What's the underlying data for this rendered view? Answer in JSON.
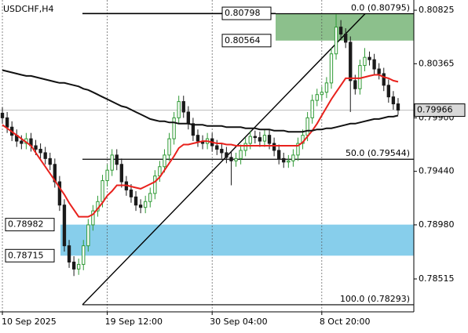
{
  "chart_data": {
    "type": "candlestick",
    "title": "USDCHF,H4",
    "up_color": "#2f9a35",
    "down_color": "#1a1a1a",
    "open": [
      0.7994,
      0.799,
      0.7982,
      0.7975,
      0.797,
      0.7968,
      0.7972,
      0.7966,
      0.7963,
      0.796,
      0.7955,
      0.795,
      0.7935,
      0.7915,
      0.788,
      0.7866,
      0.786,
      0.7864,
      0.788,
      0.7898,
      0.791,
      0.7918,
      0.7936,
      0.7945,
      0.7958,
      0.795,
      0.7935,
      0.7928,
      0.7922,
      0.7915,
      0.7913,
      0.7918,
      0.7925,
      0.794,
      0.7948,
      0.7958,
      0.7972,
      0.799,
      0.8004,
      0.7995,
      0.7985,
      0.7975,
      0.797,
      0.7968,
      0.7972,
      0.7966,
      0.7963,
      0.796,
      0.7956,
      0.7953,
      0.7955,
      0.7962,
      0.7968,
      0.7974,
      0.7973,
      0.797,
      0.7975,
      0.7968,
      0.7962,
      0.7955,
      0.7952,
      0.7953,
      0.7958,
      0.7968,
      0.7975,
      0.799,
      0.8005,
      0.801,
      0.8012,
      0.802,
      0.8045,
      0.8068,
      0.8062,
      0.8055,
      0.8022,
      0.8015,
      0.8035,
      0.8042,
      0.804,
      0.8032,
      0.8028,
      0.8018,
      0.8008,
      0.8002
    ],
    "high": [
      0.7999,
      0.7995,
      0.7987,
      0.798,
      0.7975,
      0.7977,
      0.7977,
      0.7971,
      0.7968,
      0.7965,
      0.796,
      0.7955,
      0.794,
      0.792,
      0.7885,
      0.7871,
      0.7869,
      0.7885,
      0.7903,
      0.7915,
      0.7923,
      0.7941,
      0.795,
      0.7963,
      0.7963,
      0.7955,
      0.794,
      0.7933,
      0.7927,
      0.792,
      0.7923,
      0.793,
      0.7945,
      0.7953,
      0.7963,
      0.7977,
      0.7995,
      0.8009,
      0.8009,
      0.8,
      0.799,
      0.798,
      0.7975,
      0.7977,
      0.7977,
      0.7971,
      0.7968,
      0.7965,
      0.7961,
      0.796,
      0.7967,
      0.7973,
      0.7979,
      0.7979,
      0.7978,
      0.798,
      0.798,
      0.7973,
      0.7967,
      0.796,
      0.7958,
      0.7963,
      0.7973,
      0.798,
      0.7995,
      0.801,
      0.8015,
      0.8017,
      0.8025,
      0.805,
      0.8079,
      0.8074,
      0.8067,
      0.806,
      0.8027,
      0.804,
      0.805,
      0.8047,
      0.8045,
      0.8037,
      0.8033,
      0.8023,
      0.8013,
      0.8007
    ],
    "low": [
      0.7985,
      0.7977,
      0.797,
      0.7965,
      0.7963,
      0.7963,
      0.7961,
      0.7958,
      0.7955,
      0.795,
      0.7945,
      0.793,
      0.791,
      0.7875,
      0.7861,
      0.7854,
      0.7855,
      0.7859,
      0.7875,
      0.7893,
      0.7905,
      0.7913,
      0.7931,
      0.794,
      0.7945,
      0.793,
      0.7923,
      0.7917,
      0.791,
      0.7908,
      0.7908,
      0.7913,
      0.792,
      0.7935,
      0.7943,
      0.7953,
      0.7967,
      0.7985,
      0.799,
      0.798,
      0.797,
      0.7965,
      0.7963,
      0.7963,
      0.7961,
      0.7958,
      0.7955,
      0.7951,
      0.7932,
      0.7948,
      0.795,
      0.7957,
      0.7963,
      0.7968,
      0.7965,
      0.7965,
      0.7963,
      0.7957,
      0.795,
      0.7947,
      0.7947,
      0.7948,
      0.7953,
      0.7963,
      0.797,
      0.7985,
      0.8,
      0.8005,
      0.8007,
      0.8015,
      0.804,
      0.8057,
      0.805,
      0.7995,
      0.801,
      0.801,
      0.803,
      0.8035,
      0.8027,
      0.8023,
      0.8013,
      0.8003,
      0.7997,
      0.79926
    ],
    "close": [
      0.799,
      0.7982,
      0.7975,
      0.797,
      0.7968,
      0.7972,
      0.7966,
      0.7963,
      0.796,
      0.7955,
      0.795,
      0.7935,
      0.7915,
      0.788,
      0.7866,
      0.786,
      0.7864,
      0.788,
      0.7898,
      0.791,
      0.7918,
      0.7936,
      0.7945,
      0.7958,
      0.795,
      0.7935,
      0.7928,
      0.7922,
      0.7915,
      0.7913,
      0.7918,
      0.7925,
      0.794,
      0.7948,
      0.7958,
      0.7972,
      0.799,
      0.8004,
      0.7995,
      0.7985,
      0.7975,
      0.797,
      0.7968,
      0.7972,
      0.7966,
      0.7963,
      0.796,
      0.7956,
      0.7953,
      0.7955,
      0.7962,
      0.7968,
      0.7974,
      0.7973,
      0.797,
      0.7975,
      0.7968,
      0.7962,
      0.7955,
      0.7952,
      0.7953,
      0.7958,
      0.7968,
      0.7975,
      0.799,
      0.8005,
      0.801,
      0.8012,
      0.802,
      0.8045,
      0.8068,
      0.8062,
      0.8055,
      0.8022,
      0.8015,
      0.8035,
      0.8042,
      0.804,
      0.8032,
      0.8028,
      0.8018,
      0.8008,
      0.8002,
      0.79966
    ],
    "moving_averages": [
      {
        "color": "#e8211c",
        "values": [
          0.7984,
          0.7981,
          0.7978,
          0.7975,
          0.7972,
          0.7969,
          0.7966,
          0.796,
          0.7954,
          0.7948,
          0.7942,
          0.7936,
          0.793,
          0.7924,
          0.7917,
          0.7911,
          0.7905,
          0.7905,
          0.7905,
          0.7907,
          0.7912,
          0.7917,
          0.7923,
          0.7927,
          0.7932,
          0.7932,
          0.7932,
          0.7931,
          0.793,
          0.7929,
          0.7931,
          0.7933,
          0.7935,
          0.7939,
          0.7945,
          0.7951,
          0.7957,
          0.7964,
          0.7967,
          0.7967,
          0.7968,
          0.7969,
          0.797,
          0.797,
          0.7969,
          0.7968,
          0.7968,
          0.7967,
          0.7967,
          0.7966,
          0.7966,
          0.7966,
          0.7966,
          0.7966,
          0.7966,
          0.7966,
          0.7966,
          0.7966,
          0.7966,
          0.7966,
          0.7966,
          0.7966,
          0.7966,
          0.7969,
          0.7974,
          0.7979,
          0.7985,
          0.7992,
          0.7999,
          0.8006,
          0.8012,
          0.8018,
          0.8024,
          0.8024,
          0.8024,
          0.8024,
          0.8025,
          0.8026,
          0.8027,
          0.8027,
          0.8025,
          0.8024,
          0.8022,
          0.8021
        ]
      },
      {
        "color": "#111111",
        "values": [
          0.8031,
          0.803,
          0.8029,
          0.8028,
          0.8027,
          0.8026,
          0.8026,
          0.8025,
          0.8024,
          0.8023,
          0.8022,
          0.8021,
          0.802,
          0.802,
          0.8019,
          0.8018,
          0.8017,
          0.8015,
          0.8014,
          0.8012,
          0.801,
          0.8008,
          0.8006,
          0.8004,
          0.8002,
          0.8,
          0.7999,
          0.7997,
          0.7995,
          0.7993,
          0.7991,
          0.7989,
          0.7988,
          0.7987,
          0.7987,
          0.7986,
          0.7986,
          0.7985,
          0.7985,
          0.7985,
          0.7984,
          0.7984,
          0.7984,
          0.7983,
          0.7983,
          0.7983,
          0.7983,
          0.7982,
          0.7982,
          0.7982,
          0.7982,
          0.7981,
          0.7981,
          0.7981,
          0.798,
          0.798,
          0.798,
          0.7979,
          0.7979,
          0.7979,
          0.7978,
          0.7978,
          0.7978,
          0.7978,
          0.7979,
          0.7979,
          0.798,
          0.798,
          0.7981,
          0.7981,
          0.7982,
          0.7983,
          0.7984,
          0.7985,
          0.7985,
          0.7986,
          0.7987,
          0.7988,
          0.7989,
          0.7989,
          0.799,
          0.7991,
          0.7991,
          0.7992
        ]
      }
    ],
    "xlim": [
      -0.5,
      83.5
    ],
    "xticks": [
      {
        "value": 0,
        "label": "10 Sep 2025"
      },
      {
        "value": 22,
        "label": "19 Sep 12:00"
      },
      {
        "value": 44,
        "label": "30 Sep 04:00"
      },
      {
        "value": 67,
        "label": "8 Oct 20:00"
      }
    ],
    "ylim": [
      0.78232,
      0.80913
    ],
    "yticks": [
      0.80825,
      0.80365,
      {
        "value": 0.799,
        "label": "0.79900"
      },
      {
        "value": 0.7944,
        "label": "0.79440"
      },
      {
        "value": 0.7898,
        "label": "0.78980"
      },
      0.78515
    ],
    "current_price": 0.79966,
    "zones": [
      {
        "color": "#8cc08c",
        "top": 0.80798,
        "bottom": 0.80564
      },
      {
        "color": "#87ceeb",
        "top": 0.78982,
        "bottom": 0.78715
      }
    ],
    "fib": {
      "color": "#000000",
      "levels": [
        {
          "value": 0.80795,
          "label": "0.0 (0.80795)"
        },
        {
          "value": 0.79544,
          "label": "50.0 (0.79544)"
        },
        {
          "value": 0.78293,
          "label": "100.0 (0.78293)"
        }
      ]
    }
  }
}
